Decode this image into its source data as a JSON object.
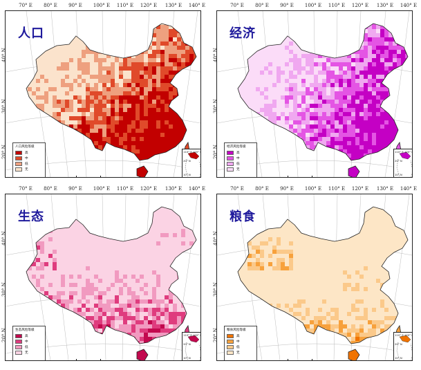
{
  "panels": [
    {
      "title": "人口",
      "legend_title": "人口风险等级",
      "classes": [
        {
          "label": "高",
          "color": "#c20000"
        },
        {
          "label": "中",
          "color": "#e04a2a"
        },
        {
          "label": "低",
          "color": "#eea07f"
        },
        {
          "label": "无",
          "color": "#fbe3cc"
        }
      ]
    },
    {
      "title": "经济",
      "legend_title": "经济风险等级",
      "classes": [
        {
          "label": "高",
          "color": "#c400c4"
        },
        {
          "label": "中",
          "color": "#e455e4"
        },
        {
          "label": "低",
          "color": "#f0a8f0"
        },
        {
          "label": "无",
          "color": "#fbdcf8"
        }
      ]
    },
    {
      "title": "生态",
      "legend_title": "生态风险等级",
      "classes": [
        {
          "label": "高",
          "color": "#c2094e"
        },
        {
          "label": "中",
          "color": "#df3c7e"
        },
        {
          "label": "低",
          "color": "#f19ac0"
        },
        {
          "label": "无",
          "color": "#fbd3e4"
        }
      ]
    },
    {
      "title": "粮食",
      "legend_title": "粮食风险等级",
      "classes": [
        {
          "label": "高",
          "color": "#f07300"
        },
        {
          "label": "中",
          "color": "#f7a13c"
        },
        {
          "label": "低",
          "color": "#fbc98a"
        },
        {
          "label": "无",
          "color": "#fde6c6"
        }
      ]
    }
  ],
  "lon_labels": [
    "70° E",
    "80° E",
    "90° E",
    "100° E",
    "110° E",
    "120° E",
    "130° E",
    "140° E"
  ],
  "lat_labels": [
    "40° N",
    "30° N",
    "20° N"
  ],
  "scale_labels": [
    "0",
    "250",
    "500 Km"
  ],
  "inset_labels": [
    "110° E",
    "120° E",
    "20° N",
    "10° N"
  ]
}
